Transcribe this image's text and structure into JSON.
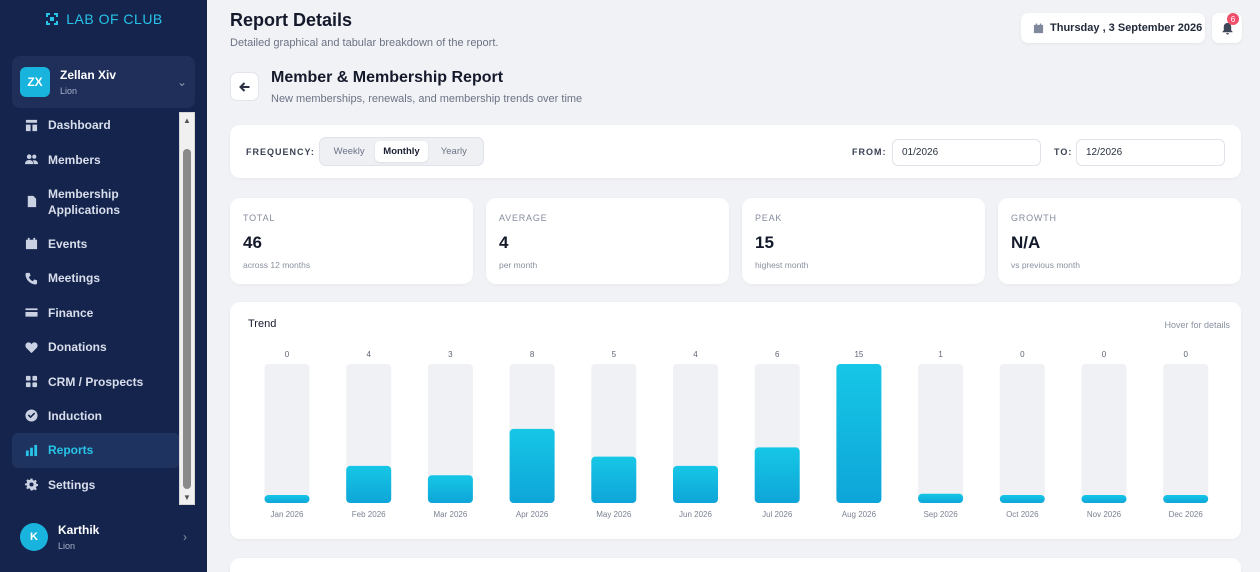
{
  "brand": {
    "name": "LAB OF CLUB"
  },
  "current_user": {
    "initials": "ZX",
    "name": "Zellan Xiv",
    "role": "Lion"
  },
  "sidebar": {
    "items": [
      {
        "label": "Dashboard",
        "icon": "dashboard-icon"
      },
      {
        "label": "Members",
        "icon": "users-icon"
      },
      {
        "label": "Membership Applications",
        "icon": "document-icon"
      },
      {
        "label": "Events",
        "icon": "calendar-icon"
      },
      {
        "label": "Meetings",
        "icon": "phone-icon"
      },
      {
        "label": "Finance",
        "icon": "card-icon"
      },
      {
        "label": "Donations",
        "icon": "heart-icon"
      },
      {
        "label": "CRM / Prospects",
        "icon": "grid-icon"
      },
      {
        "label": "Induction",
        "icon": "check-circle-icon"
      },
      {
        "label": "Reports",
        "icon": "bar-chart-icon",
        "active": true
      },
      {
        "label": "Settings",
        "icon": "gear-icon"
      }
    ]
  },
  "bottom_user": {
    "initials": "K",
    "name": "Karthik",
    "role": "Lion"
  },
  "header": {
    "title": "Report Details",
    "subtitle": "Detailed graphical and tabular breakdown of the report.",
    "date": "Thursday , 3 September 2026",
    "notification_count": "6"
  },
  "report": {
    "title": "Member & Membership Report",
    "subtitle": "New memberships, renewals, and membership trends over time"
  },
  "filters": {
    "frequency_label": "FREQUENCY:",
    "options": [
      "Weekly",
      "Monthly",
      "Yearly"
    ],
    "selected": "Monthly",
    "from_label": "FROM:",
    "from_value": "01/2026",
    "to_label": "TO:",
    "to_value": "12/2026"
  },
  "stats": [
    {
      "label": "TOTAL",
      "value": "46",
      "note": "across 12 months"
    },
    {
      "label": "AVERAGE",
      "value": "4",
      "note": "per month"
    },
    {
      "label": "PEAK",
      "value": "15",
      "note": "highest month"
    },
    {
      "label": "GROWTH",
      "value": "N/A",
      "note": "vs previous month"
    }
  ],
  "chart_data": {
    "type": "bar",
    "title": "Trend",
    "hint": "Hover for details",
    "categories": [
      "Jan 2026",
      "Feb 2026",
      "Mar 2026",
      "Apr 2026",
      "May 2026",
      "Jun 2026",
      "Jul 2026",
      "Aug 2026",
      "Sep 2026",
      "Oct 2026",
      "Nov 2026",
      "Dec 2026"
    ],
    "values": [
      0,
      4,
      3,
      8,
      5,
      4,
      6,
      15,
      1,
      0,
      0,
      0
    ],
    "ylim": [
      0,
      15
    ],
    "bar_color": "#13b9df",
    "track_color": "#f0f1f4"
  }
}
